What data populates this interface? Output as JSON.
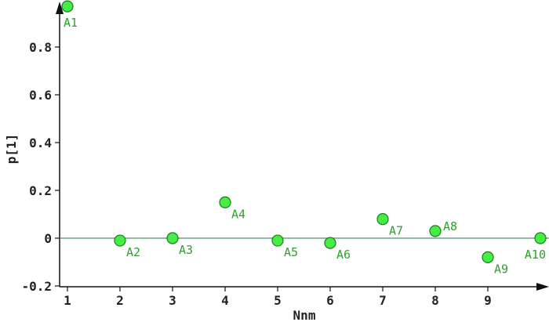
{
  "chart_data": {
    "type": "scatter",
    "title": "",
    "xlabel": "Nnm",
    "ylabel": "p[1]",
    "xlim": [
      0.9,
      10.1
    ],
    "ylim": [
      -0.2,
      0.98
    ],
    "x_ticks": [
      1,
      2,
      3,
      4,
      5,
      6,
      7,
      8,
      9
    ],
    "y_ticks": [
      -0.2,
      0,
      0.2,
      0.4,
      0.6,
      0.8
    ],
    "y_tick_labels": [
      "-0.2",
      "0",
      "0.2",
      "0.4",
      "0.6",
      "0.8"
    ],
    "grid": false,
    "reference_line": {
      "y": 0,
      "color": "#4f8a6a"
    },
    "marker_color": "#44ee44",
    "marker_edge_color": "#1f7a1f",
    "label_color": "#2ea02e",
    "points": [
      {
        "label": "A1",
        "x": 1,
        "y": 0.97
      },
      {
        "label": "A2",
        "x": 2,
        "y": -0.01
      },
      {
        "label": "A3",
        "x": 3,
        "y": 0.0
      },
      {
        "label": "A4",
        "x": 4,
        "y": 0.15
      },
      {
        "label": "A5",
        "x": 5,
        "y": -0.01
      },
      {
        "label": "A6",
        "x": 6,
        "y": -0.02
      },
      {
        "label": "A7",
        "x": 7,
        "y": 0.08
      },
      {
        "label": "A8",
        "x": 8,
        "y": 0.03
      },
      {
        "label": "A9",
        "x": 9,
        "y": -0.08
      },
      {
        "label": "A10",
        "x": 10,
        "y": 0.0
      }
    ]
  }
}
